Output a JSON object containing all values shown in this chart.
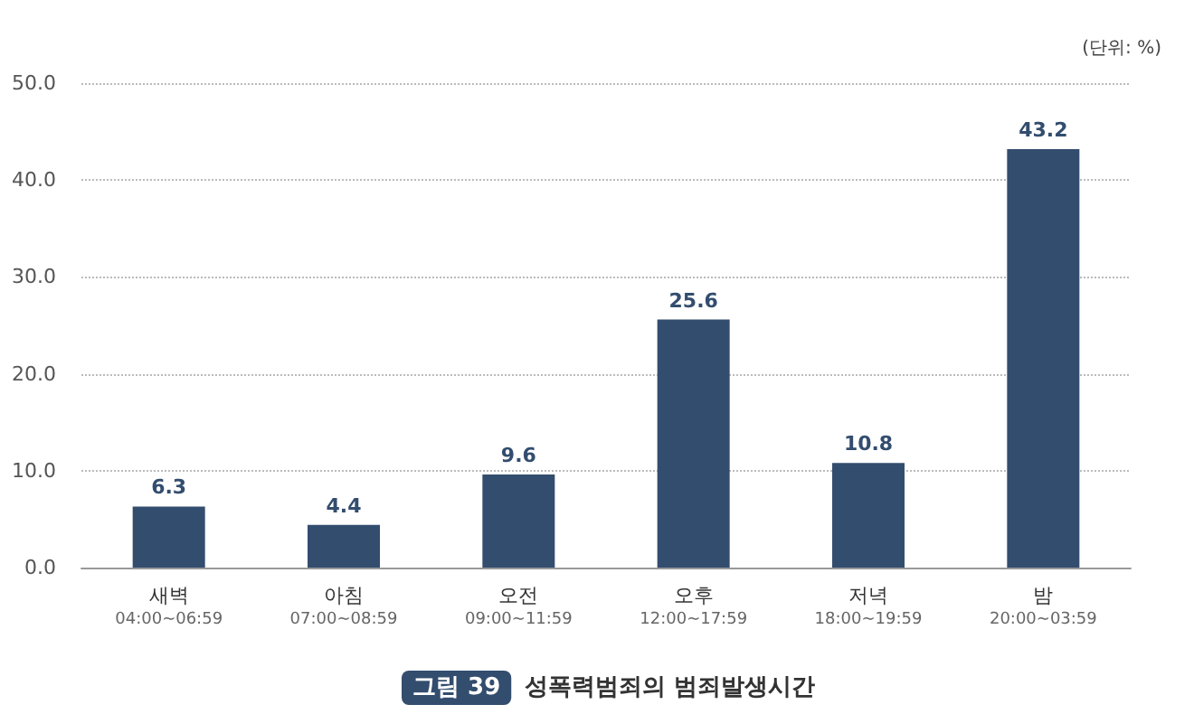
{
  "chart_data": {
    "type": "bar",
    "title": "그림 39",
    "subtitle": "성폭력범죄의 범죄발생시간",
    "ylabel": "(단위: %)",
    "categories": [
      "새벽\n04:00~06:59",
      "아침\n07:00~08:59",
      "오전\n09:00~11:59",
      "오후\n12:00~17:59",
      "저녁\n18:00~19:59",
      "밤\n20:00~03:59"
    ],
    "values": [
      6.3,
      4.4,
      9.6,
      25.6,
      10.8,
      43.2
    ],
    "color": "#334d6e",
    "ylim": [
      0,
      50
    ],
    "yticks": [
      {
        "value": 0,
        "label": "0.0"
      },
      {
        "value": 10,
        "label": "10.0"
      },
      {
        "value": 20,
        "label": "20.0"
      },
      {
        "value": 30,
        "label": "30.0"
      },
      {
        "value": 40,
        "label": "40.0"
      },
      {
        "value": 50,
        "label": "50.0"
      }
    ],
    "grid": "y",
    "data_labels": true
  }
}
